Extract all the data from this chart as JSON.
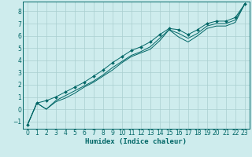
{
  "xlabel": "Humidex (Indice chaleur)",
  "bg_color": "#ceeced",
  "grid_color": "#aacfcf",
  "line_color": "#006666",
  "marker_color": "#006666",
  "xlim": [
    -0.5,
    23.5
  ],
  "ylim": [
    -1.6,
    8.8
  ],
  "xticks": [
    0,
    1,
    2,
    3,
    4,
    5,
    6,
    7,
    8,
    9,
    10,
    11,
    12,
    13,
    14,
    15,
    16,
    17,
    18,
    19,
    20,
    21,
    22,
    23
  ],
  "yticks": [
    -1,
    0,
    1,
    2,
    3,
    4,
    5,
    6,
    7,
    8
  ],
  "line1_x": [
    0,
    1,
    2,
    3,
    4,
    5,
    6,
    7,
    8,
    9,
    10,
    11,
    12,
    13,
    14,
    15,
    16,
    17,
    18,
    19,
    20,
    21,
    22,
    23
  ],
  "line1_y": [
    -1.3,
    0.5,
    0.7,
    1.0,
    1.4,
    1.8,
    2.2,
    2.7,
    3.2,
    3.8,
    4.3,
    4.8,
    5.1,
    5.5,
    6.1,
    6.6,
    6.5,
    6.1,
    6.5,
    7.0,
    7.2,
    7.2,
    7.5,
    8.6
  ],
  "line2_x": [
    0,
    1,
    2,
    3,
    4,
    5,
    6,
    7,
    8,
    9,
    10,
    11,
    12,
    13,
    14,
    15,
    16,
    17,
    18,
    19,
    20,
    21,
    22,
    23
  ],
  "line2_y": [
    -1.3,
    0.5,
    0.0,
    0.7,
    1.1,
    1.5,
    1.9,
    2.3,
    2.8,
    3.4,
    3.9,
    4.4,
    4.7,
    5.1,
    5.8,
    6.5,
    6.2,
    5.8,
    6.2,
    6.8,
    7.0,
    7.0,
    7.3,
    8.6
  ],
  "line3_x": [
    0,
    1,
    2,
    3,
    4,
    5,
    6,
    7,
    8,
    9,
    10,
    11,
    12,
    13,
    14,
    15,
    16,
    17,
    18,
    19,
    20,
    21,
    22,
    23
  ],
  "line3_y": [
    -1.3,
    0.5,
    0.0,
    0.6,
    0.9,
    1.3,
    1.8,
    2.2,
    2.7,
    3.2,
    3.8,
    4.3,
    4.6,
    4.9,
    5.6,
    6.5,
    5.9,
    5.5,
    6.0,
    6.6,
    6.8,
    6.8,
    7.1,
    8.6
  ],
  "spine_color": "#006666",
  "xlabel_fontsize": 6.5,
  "tick_fontsize": 5.5
}
